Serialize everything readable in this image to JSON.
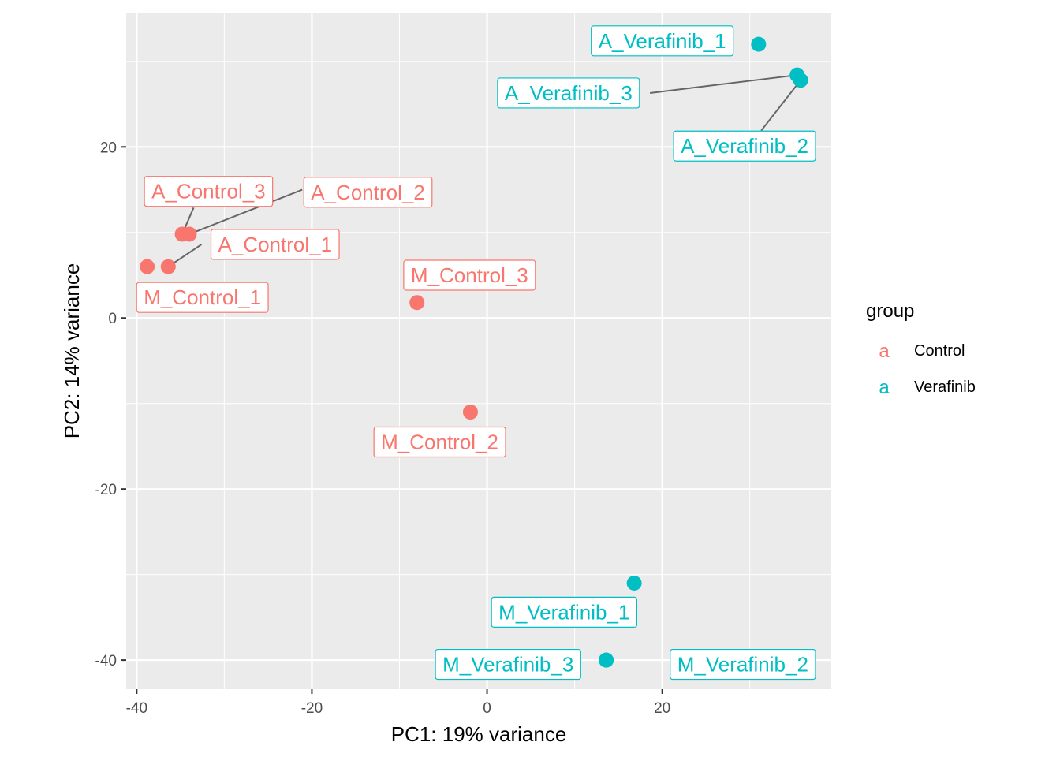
{
  "chart_data": {
    "type": "scatter",
    "xlabel": "PC1: 19% variance",
    "ylabel": "PC2: 14% variance",
    "xlim": [
      -41.2,
      39.3
    ],
    "ylim": [
      -43.4,
      35.7
    ],
    "x_ticks": [
      -40,
      -20,
      0,
      20
    ],
    "y_ticks": [
      -40,
      -20,
      0,
      20
    ],
    "x_tick_labels": [
      "-40",
      "-20",
      "0",
      "20"
    ],
    "y_tick_labels": [
      "-40",
      "-20",
      "0",
      "20"
    ],
    "grid": true,
    "legend": {
      "title": "group",
      "position": "right",
      "key_glyph": "a",
      "entries": [
        {
          "label": "Control",
          "color": "#F8766D"
        },
        {
          "label": "Verafinib",
          "color": "#00BFC4"
        }
      ]
    },
    "colors": {
      "Control": "#F8766D",
      "Verafinib": "#00BFC4"
    },
    "points": [
      {
        "label": "A_Verafinib_1",
        "group": "Verafinib",
        "x": 31.0,
        "y": 32.0,
        "label_x": 20.0,
        "label_y": 32.4
      },
      {
        "label": "A_Verafinib_3",
        "group": "Verafinib",
        "x": 35.4,
        "y": 28.4,
        "label_x": 9.3,
        "label_y": 26.3
      },
      {
        "label": "A_Verafinib_2",
        "group": "Verafinib",
        "x": 35.8,
        "y": 27.8,
        "label_x": 29.4,
        "label_y": 20.1
      },
      {
        "label": "A_Control_3",
        "group": "Control",
        "x": -34.8,
        "y": 9.8,
        "label_x": -31.8,
        "label_y": 14.8
      },
      {
        "label": "A_Control_2",
        "group": "Control",
        "x": -34.0,
        "y": 9.8,
        "label_x": -13.6,
        "label_y": 14.7
      },
      {
        "label": "A_Control_1",
        "group": "Control",
        "x": -36.4,
        "y": 6.0,
        "label_x": -24.2,
        "label_y": 8.6
      },
      {
        "label": "M_Control_1",
        "group": "Control",
        "x": -38.8,
        "y": 6.0,
        "label_x": -32.5,
        "label_y": 2.4
      },
      {
        "label": "M_Control_3",
        "group": "Control",
        "x": -8.0,
        "y": 1.8,
        "label_x": -2.0,
        "label_y": 5.0
      },
      {
        "label": "M_Control_2",
        "group": "Control",
        "x": -1.9,
        "y": -11.0,
        "label_x": -5.4,
        "label_y": -14.5
      },
      {
        "label": "M_Verafinib_1",
        "group": "Verafinib",
        "x": 16.8,
        "y": -31.0,
        "label_x": 8.8,
        "label_y": -34.4
      },
      {
        "label": "M_Verafinib_3",
        "group": "Verafinib",
        "x": 13.6,
        "y": -40.0,
        "label_x": 2.4,
        "label_y": -40.5
      },
      {
        "label": "M_Verafinib_2",
        "group": "Verafinib",
        "x": 13.6,
        "y": -40.0,
        "label_x": 29.2,
        "label_y": -40.5
      }
    ],
    "connectors": [
      {
        "from": [
          35.4,
          28.4
        ],
        "to": [
          18.6,
          26.3
        ]
      },
      {
        "from": [
          35.8,
          27.8
        ],
        "to": [
          31.3,
          21.9
        ]
      },
      {
        "from": [
          -34.8,
          9.8
        ],
        "to": [
          -33.5,
          12.9
        ]
      },
      {
        "from": [
          -34.0,
          9.8
        ],
        "to": [
          -21.1,
          15.0
        ]
      },
      {
        "from": [
          -36.4,
          6.0
        ],
        "to": [
          -32.6,
          8.6
        ]
      }
    ]
  }
}
